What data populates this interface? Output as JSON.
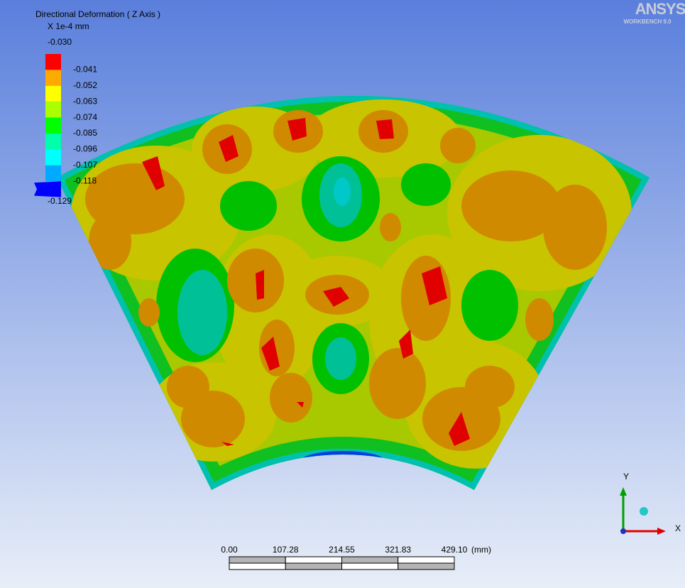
{
  "legend": {
    "title": "Directional Deformation ( Z Axis )",
    "unit": "X 1e-4 mm",
    "levels": [
      "-0.030",
      "-0.041",
      "-0.052",
      "-0.063",
      "-0.074",
      "-0.085",
      "-0.096",
      "-0.107",
      "-0.118",
      "-0.129"
    ],
    "colors": [
      "#ff0000",
      "#ffaa00",
      "#ffff00",
      "#aaff00",
      "#00ff00",
      "#00ffaa",
      "#00ffff",
      "#00aaff",
      "#0000ff"
    ]
  },
  "logo": {
    "name": "ANSYS",
    "product": "WORKBENCH 9.0"
  },
  "triad": {
    "y": "Y",
    "x": "X"
  },
  "scale_bar": {
    "ticks": [
      "0.00",
      "107.28",
      "214.55",
      "321.83",
      "429.10"
    ],
    "unit": "(mm)"
  }
}
